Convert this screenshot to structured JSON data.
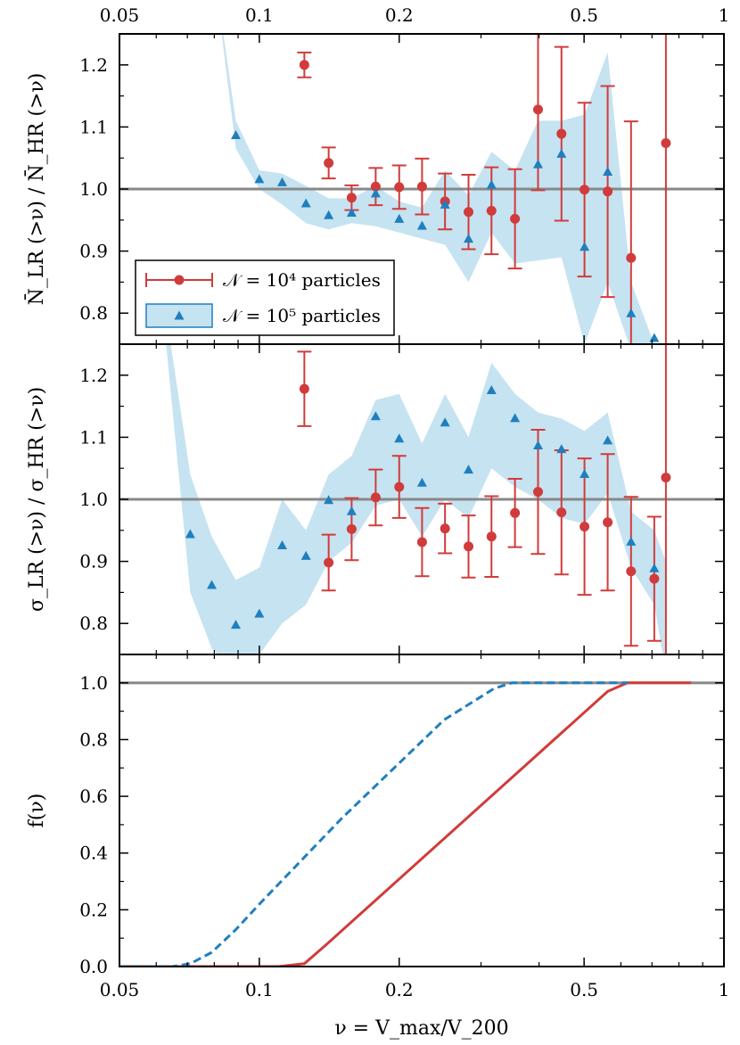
{
  "chart_data": {
    "type": "scatter",
    "x_scale": "log",
    "xlim": [
      0.05,
      1
    ],
    "x_ticks": [
      0.05,
      0.1,
      0.2,
      0.5,
      1
    ],
    "x_tick_labels": [
      "0.05",
      "0.1",
      "0.2",
      "0.5",
      "1"
    ],
    "xlabel": "ν = V_max/V_200",
    "colors": {
      "lr": "#d13b3b",
      "hr": "#1f7fbf",
      "band": "#c6e3f1",
      "ref_line": "#888888"
    },
    "legend": {
      "placement": "lower-left of top panel",
      "entries": [
        {
          "key": "lr",
          "label": "𝒩 = 10⁴ particles",
          "marker": "circle with error bar"
        },
        {
          "key": "hr",
          "label": "𝒩 = 10⁵ particles",
          "marker": "triangle with shaded band"
        }
      ]
    },
    "panels": [
      {
        "id": "mean-ratio",
        "ylabel": "N̄_LR (>ν) / N̄_HR (>ν)",
        "ylim": [
          0.75,
          1.25
        ],
        "y_ticks": [
          0.8,
          0.9,
          1.0,
          1.1,
          1.2
        ],
        "y_tick_labels": [
          "0.8",
          "0.9",
          "1.0",
          "1.1",
          "1.2"
        ],
        "reference_line": 1.0,
        "series": [
          {
            "key": "lr",
            "x": [
              0.125,
              0.141,
              0.158,
              0.178,
              0.2,
              0.224,
              0.251,
              0.282,
              0.316,
              0.355,
              0.398,
              0.447,
              0.501,
              0.562,
              0.631,
              0.75
            ],
            "y": [
              1.2,
              1.042,
              0.986,
              1.004,
              1.003,
              1.004,
              0.98,
              0.963,
              0.965,
              0.952,
              1.128,
              1.089,
              0.999,
              0.996,
              0.889,
              1.074
            ],
            "err": [
              0.02,
              0.025,
              0.02,
              0.03,
              0.035,
              0.045,
              0.045,
              0.06,
              0.07,
              0.08,
              0.13,
              0.14,
              0.14,
              0.17,
              0.22,
              0.45
            ]
          },
          {
            "key": "hr",
            "x": [
              0.089,
              0.1,
              0.112,
              0.126,
              0.141,
              0.158,
              0.178,
              0.2,
              0.224,
              0.251,
              0.282,
              0.316,
              0.398,
              0.447,
              0.501,
              0.562,
              0.631,
              0.708
            ],
            "y": [
              1.087,
              1.016,
              1.011,
              0.977,
              0.958,
              0.962,
              0.993,
              0.952,
              0.941,
              0.975,
              0.92,
              1.007,
              1.04,
              1.057,
              0.907,
              1.028,
              0.8,
              0.76
            ],
            "band": {
              "x": [
                0.079,
                0.089,
                0.1,
                0.112,
                0.126,
                0.141,
                0.158,
                0.178,
                0.2,
                0.224,
                0.251,
                0.282,
                0.316,
                0.355,
                0.398,
                0.447,
                0.501,
                0.562,
                0.631,
                0.708
              ],
              "lower": [
                1.38,
                1.065,
                1.0,
                0.975,
                0.945,
                0.935,
                0.945,
                0.94,
                0.93,
                0.92,
                0.91,
                0.85,
                0.93,
                0.88,
                0.885,
                0.89,
                0.75,
                0.85,
                0.74,
                0.7
              ],
              "upper": [
                1.38,
                1.11,
                1.03,
                1.025,
                1.005,
                0.985,
                0.985,
                1.005,
                0.98,
                0.97,
                1.03,
                0.99,
                1.06,
                1.03,
                1.11,
                1.11,
                1.12,
                1.22,
                0.85,
                0.75
              ]
            }
          }
        ]
      },
      {
        "id": "sigma-ratio",
        "ylabel": "σ_LR (>ν) / σ_HR (>ν)",
        "ylim": [
          0.75,
          1.25
        ],
        "y_ticks": [
          0.8,
          0.9,
          1.0,
          1.1,
          1.2
        ],
        "y_tick_labels": [
          "0.8",
          "0.9",
          "1.0",
          "1.1",
          "1.2"
        ],
        "reference_line": 1.0,
        "series": [
          {
            "key": "lr",
            "x": [
              0.125,
              0.141,
              0.158,
              0.178,
              0.2,
              0.224,
              0.251,
              0.282,
              0.316,
              0.355,
              0.398,
              0.447,
              0.501,
              0.562,
              0.631,
              0.708,
              0.75
            ],
            "y": [
              1.178,
              0.898,
              0.952,
              1.003,
              1.02,
              0.931,
              0.953,
              0.924,
              0.94,
              0.978,
              1.012,
              0.979,
              0.956,
              0.963,
              0.884,
              0.872,
              1.035
            ],
            "err": [
              0.06,
              0.045,
              0.05,
              0.045,
              0.05,
              0.055,
              0.04,
              0.05,
              0.065,
              0.055,
              0.1,
              0.1,
              0.11,
              0.11,
              0.12,
              0.1,
              0.3
            ]
          },
          {
            "key": "hr",
            "x": [
              0.071,
              0.079,
              0.089,
              0.1,
              0.112,
              0.126,
              0.141,
              0.158,
              0.178,
              0.2,
              0.224,
              0.251,
              0.282,
              0.316,
              0.355,
              0.398,
              0.447,
              0.501,
              0.562,
              0.631,
              0.708
            ],
            "y": [
              0.944,
              0.862,
              0.798,
              0.816,
              0.926,
              0.909,
              0.999,
              0.981,
              1.134,
              1.098,
              1.027,
              1.124,
              1.048,
              1.176,
              1.131,
              1.087,
              1.081,
              1.041,
              1.095,
              0.932,
              0.889
            ],
            "band": {
              "x": [
                0.063,
                0.071,
                0.079,
                0.089,
                0.1,
                0.112,
                0.126,
                0.141,
                0.158,
                0.178,
                0.2,
                0.224,
                0.251,
                0.282,
                0.316,
                0.355,
                0.398,
                0.447,
                0.501,
                0.562,
                0.631,
                0.708,
                0.75
              ],
              "lower": [
                1.25,
                0.85,
                0.76,
                0.72,
                0.75,
                0.8,
                0.83,
                0.9,
                0.93,
                0.99,
                1.0,
                0.94,
                1.0,
                0.97,
                1.05,
                1.02,
                1.0,
                0.97,
                0.96,
                1.01,
                0.89,
                0.83,
                0.72
              ],
              "upper": [
                1.3,
                1.04,
                0.94,
                0.87,
                0.89,
                1.0,
                0.95,
                1.04,
                1.07,
                1.16,
                1.17,
                1.09,
                1.17,
                1.1,
                1.22,
                1.17,
                1.14,
                1.13,
                1.11,
                1.14,
                0.98,
                0.95,
                0.9
              ]
            }
          }
        ]
      },
      {
        "id": "f-nu",
        "ylabel": "f(ν)",
        "ylim": [
          0,
          1.1
        ],
        "y_ticks": [
          0.0,
          0.2,
          0.4,
          0.6,
          0.8,
          1.0
        ],
        "y_tick_labels": [
          "0.0",
          "0.2",
          "0.4",
          "0.6",
          "0.8",
          "1.0"
        ],
        "reference_line": 1.0,
        "series": [
          {
            "key": "lr",
            "style": "solid",
            "x": [
              0.05,
              0.11,
              0.125,
              0.14,
              0.562,
              0.62,
              0.85
            ],
            "y": [
              0.0,
              0.0,
              0.01,
              0.08,
              0.97,
              1.0,
              1.0
            ]
          },
          {
            "key": "hr",
            "style": "dashed",
            "x": [
              0.05,
              0.065,
              0.071,
              0.079,
              0.089,
              0.1,
              0.15,
              0.25,
              0.32,
              0.35,
              0.38,
              0.62
            ],
            "y": [
              0.0,
              0.0,
              0.01,
              0.05,
              0.13,
              0.22,
              0.52,
              0.87,
              0.98,
              1.0,
              1.0,
              1.0
            ]
          }
        ]
      }
    ]
  }
}
